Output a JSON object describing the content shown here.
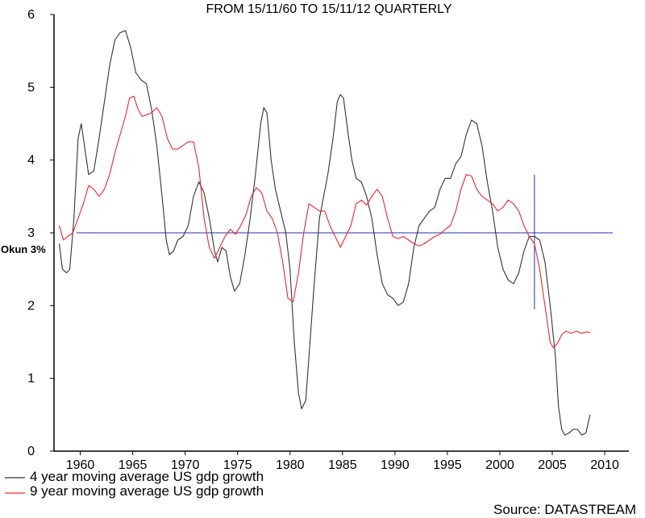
{
  "chart_data": {
    "type": "line",
    "title": "FROM 15/11/60 TO 15/11/12 QUARTERLY",
    "xlabel": "",
    "ylabel": "",
    "xlim": [
      1957.5,
      2012.3
    ],
    "ylim": [
      0,
      6
    ],
    "yticks": [
      0,
      1,
      2,
      3,
      4,
      5,
      6
    ],
    "xticks": [
      {
        "value": 1960,
        "label": "1960"
      },
      {
        "value": 1965,
        "label": "1965"
      },
      {
        "value": 1970,
        "label": "1970"
      },
      {
        "value": 1975,
        "label": "1975"
      },
      {
        "value": 1980,
        "label": "1980"
      },
      {
        "value": 1985,
        "label": "1985"
      },
      {
        "value": 1990,
        "label": "1990"
      },
      {
        "value": 1995,
        "label": "1995"
      },
      {
        "value": 2000,
        "label": "2000"
      },
      {
        "value": 2005,
        "label": "2005"
      },
      {
        "value": 2010,
        "label": "2010"
      }
    ],
    "grid": false,
    "series": [
      {
        "name": "4 year moving average US gdp growth",
        "color": "#333333",
        "points": [
          [
            1958.0,
            2.85
          ],
          [
            1958.3,
            2.5
          ],
          [
            1958.7,
            2.45
          ],
          [
            1959.0,
            2.5
          ],
          [
            1959.4,
            3.2
          ],
          [
            1959.8,
            4.3
          ],
          [
            1960.1,
            4.5
          ],
          [
            1960.4,
            4.2
          ],
          [
            1960.8,
            3.8
          ],
          [
            1961.3,
            3.85
          ],
          [
            1961.8,
            4.3
          ],
          [
            1962.3,
            4.8
          ],
          [
            1962.8,
            5.3
          ],
          [
            1963.3,
            5.65
          ],
          [
            1963.8,
            5.75
          ],
          [
            1964.3,
            5.78
          ],
          [
            1964.8,
            5.55
          ],
          [
            1965.3,
            5.2
          ],
          [
            1965.8,
            5.1
          ],
          [
            1966.3,
            5.05
          ],
          [
            1966.8,
            4.7
          ],
          [
            1967.3,
            4.2
          ],
          [
            1967.8,
            3.5
          ],
          [
            1968.2,
            2.9
          ],
          [
            1968.5,
            2.7
          ],
          [
            1968.9,
            2.75
          ],
          [
            1969.3,
            2.9
          ],
          [
            1969.8,
            2.95
          ],
          [
            1970.3,
            3.1
          ],
          [
            1970.8,
            3.5
          ],
          [
            1971.3,
            3.7
          ],
          [
            1971.8,
            3.55
          ],
          [
            1972.3,
            3.2
          ],
          [
            1972.8,
            2.75
          ],
          [
            1973.1,
            2.6
          ],
          [
            1973.5,
            2.8
          ],
          [
            1973.9,
            2.75
          ],
          [
            1974.3,
            2.4
          ],
          [
            1974.7,
            2.2
          ],
          [
            1975.2,
            2.3
          ],
          [
            1975.7,
            2.7
          ],
          [
            1976.2,
            3.2
          ],
          [
            1976.7,
            3.8
          ],
          [
            1977.2,
            4.5
          ],
          [
            1977.5,
            4.72
          ],
          [
            1977.8,
            4.65
          ],
          [
            1978.2,
            4.0
          ],
          [
            1978.6,
            3.6
          ],
          [
            1979.1,
            3.3
          ],
          [
            1979.6,
            3.0
          ],
          [
            1980.0,
            2.5
          ],
          [
            1980.4,
            1.5
          ],
          [
            1980.8,
            0.8
          ],
          [
            1981.1,
            0.58
          ],
          [
            1981.5,
            0.7
          ],
          [
            1981.9,
            1.5
          ],
          [
            1982.3,
            2.3
          ],
          [
            1982.8,
            3.2
          ],
          [
            1983.2,
            3.5
          ],
          [
            1983.6,
            3.8
          ],
          [
            1984.1,
            4.3
          ],
          [
            1984.5,
            4.8
          ],
          [
            1984.8,
            4.9
          ],
          [
            1985.1,
            4.85
          ],
          [
            1985.5,
            4.4
          ],
          [
            1985.9,
            4.0
          ],
          [
            1986.3,
            3.75
          ],
          [
            1986.8,
            3.7
          ],
          [
            1987.3,
            3.5
          ],
          [
            1987.8,
            3.2
          ],
          [
            1988.3,
            2.7
          ],
          [
            1988.8,
            2.3
          ],
          [
            1989.3,
            2.15
          ],
          [
            1989.8,
            2.1
          ],
          [
            1990.3,
            2.0
          ],
          [
            1990.8,
            2.05
          ],
          [
            1991.3,
            2.3
          ],
          [
            1991.8,
            2.8
          ],
          [
            1992.3,
            3.1
          ],
          [
            1992.8,
            3.2
          ],
          [
            1993.3,
            3.3
          ],
          [
            1993.8,
            3.35
          ],
          [
            1994.3,
            3.6
          ],
          [
            1994.8,
            3.75
          ],
          [
            1995.3,
            3.75
          ],
          [
            1995.8,
            3.95
          ],
          [
            1996.3,
            4.05
          ],
          [
            1996.8,
            4.35
          ],
          [
            1997.3,
            4.55
          ],
          [
            1997.8,
            4.5
          ],
          [
            1998.3,
            4.2
          ],
          [
            1998.8,
            3.7
          ],
          [
            1999.3,
            3.3
          ],
          [
            1999.8,
            2.8
          ],
          [
            2000.3,
            2.5
          ],
          [
            2000.8,
            2.35
          ],
          [
            2001.3,
            2.3
          ],
          [
            2001.8,
            2.45
          ],
          [
            2002.3,
            2.75
          ],
          [
            2002.8,
            2.95
          ],
          [
            2003.3,
            2.95
          ],
          [
            2003.8,
            2.9
          ],
          [
            2004.3,
            2.6
          ],
          [
            2004.8,
            2.0
          ],
          [
            2005.3,
            1.3
          ],
          [
            2005.6,
            0.6
          ],
          [
            2005.9,
            0.3
          ],
          [
            2006.2,
            0.22
          ],
          [
            2006.6,
            0.25
          ],
          [
            2007.0,
            0.3
          ],
          [
            2007.4,
            0.3
          ],
          [
            2007.8,
            0.22
          ],
          [
            2008.2,
            0.25
          ],
          [
            2008.6,
            0.5
          ]
        ]
      },
      {
        "name": "9 year moving average US gdp growth",
        "color": "#e8292f",
        "points": [
          [
            1958.0,
            3.1
          ],
          [
            1958.4,
            2.9
          ],
          [
            1958.8,
            2.95
          ],
          [
            1959.3,
            3.0
          ],
          [
            1959.8,
            3.2
          ],
          [
            1960.3,
            3.4
          ],
          [
            1960.8,
            3.65
          ],
          [
            1961.3,
            3.6
          ],
          [
            1961.8,
            3.5
          ],
          [
            1962.3,
            3.6
          ],
          [
            1962.8,
            3.8
          ],
          [
            1963.3,
            4.1
          ],
          [
            1963.8,
            4.35
          ],
          [
            1964.3,
            4.6
          ],
          [
            1964.7,
            4.85
          ],
          [
            1965.1,
            4.88
          ],
          [
            1965.5,
            4.7
          ],
          [
            1965.9,
            4.6
          ],
          [
            1966.3,
            4.62
          ],
          [
            1966.8,
            4.65
          ],
          [
            1967.3,
            4.72
          ],
          [
            1967.8,
            4.6
          ],
          [
            1968.3,
            4.3
          ],
          [
            1968.8,
            4.15
          ],
          [
            1969.3,
            4.15
          ],
          [
            1969.8,
            4.2
          ],
          [
            1970.3,
            4.25
          ],
          [
            1970.8,
            4.25
          ],
          [
            1971.3,
            3.9
          ],
          [
            1971.8,
            3.2
          ],
          [
            1972.3,
            2.8
          ],
          [
            1972.8,
            2.65
          ],
          [
            1973.3,
            2.8
          ],
          [
            1973.8,
            2.95
          ],
          [
            1974.3,
            3.05
          ],
          [
            1974.8,
            2.98
          ],
          [
            1975.3,
            3.1
          ],
          [
            1975.8,
            3.25
          ],
          [
            1976.3,
            3.5
          ],
          [
            1976.8,
            3.62
          ],
          [
            1977.3,
            3.55
          ],
          [
            1977.8,
            3.3
          ],
          [
            1978.3,
            3.2
          ],
          [
            1978.8,
            3.0
          ],
          [
            1979.3,
            2.6
          ],
          [
            1979.8,
            2.1
          ],
          [
            1980.3,
            2.05
          ],
          [
            1980.8,
            2.45
          ],
          [
            1981.3,
            3.0
          ],
          [
            1981.8,
            3.4
          ],
          [
            1982.3,
            3.35
          ],
          [
            1982.8,
            3.3
          ],
          [
            1983.3,
            3.3
          ],
          [
            1983.8,
            3.1
          ],
          [
            1984.3,
            2.95
          ],
          [
            1984.8,
            2.8
          ],
          [
            1985.3,
            2.95
          ],
          [
            1985.8,
            3.1
          ],
          [
            1986.3,
            3.4
          ],
          [
            1986.8,
            3.45
          ],
          [
            1987.3,
            3.38
          ],
          [
            1987.8,
            3.5
          ],
          [
            1988.3,
            3.6
          ],
          [
            1988.8,
            3.5
          ],
          [
            1989.3,
            3.2
          ],
          [
            1989.8,
            2.95
          ],
          [
            1990.3,
            2.92
          ],
          [
            1990.8,
            2.95
          ],
          [
            1991.3,
            2.9
          ],
          [
            1991.8,
            2.85
          ],
          [
            1992.3,
            2.82
          ],
          [
            1992.8,
            2.85
          ],
          [
            1993.3,
            2.9
          ],
          [
            1993.8,
            2.95
          ],
          [
            1994.3,
            2.98
          ],
          [
            1994.8,
            3.05
          ],
          [
            1995.3,
            3.1
          ],
          [
            1995.8,
            3.3
          ],
          [
            1996.3,
            3.6
          ],
          [
            1996.8,
            3.8
          ],
          [
            1997.3,
            3.78
          ],
          [
            1997.8,
            3.6
          ],
          [
            1998.3,
            3.5
          ],
          [
            1998.8,
            3.45
          ],
          [
            1999.3,
            3.4
          ],
          [
            1999.8,
            3.3
          ],
          [
            2000.3,
            3.35
          ],
          [
            2000.8,
            3.45
          ],
          [
            2001.3,
            3.4
          ],
          [
            2001.8,
            3.3
          ],
          [
            2002.3,
            3.1
          ],
          [
            2002.8,
            2.95
          ],
          [
            2003.3,
            2.85
          ],
          [
            2003.8,
            2.5
          ],
          [
            2004.3,
            2.0
          ],
          [
            2004.8,
            1.5
          ],
          [
            2005.1,
            1.42
          ],
          [
            2005.5,
            1.48
          ],
          [
            2005.9,
            1.6
          ],
          [
            2006.3,
            1.65
          ],
          [
            2006.8,
            1.62
          ],
          [
            2007.3,
            1.65
          ],
          [
            2007.8,
            1.62
          ],
          [
            2008.3,
            1.64
          ],
          [
            2008.6,
            1.63
          ]
        ]
      }
    ],
    "reference_lines": [
      {
        "type": "horizontal",
        "value": 3,
        "label": "Okun 3%",
        "color": "#2b2bb8"
      },
      {
        "type": "vertical",
        "value": 2003.3,
        "from": 1.95,
        "to": 3.8,
        "color": "#2b2bb8"
      }
    ],
    "legend_position": "bottom-left"
  },
  "source_text": "Source: DATASTREAM"
}
